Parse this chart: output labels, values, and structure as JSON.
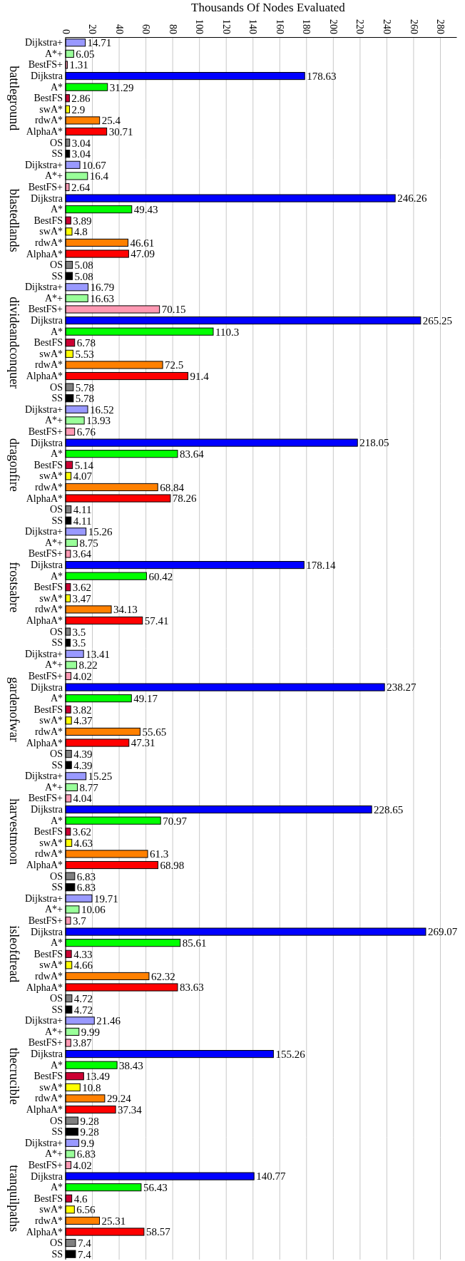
{
  "chart_data": [
    {
      "type": "bar",
      "orientation": "horizontal",
      "title": "battleground",
      "xlabel": "Thousands Of Nodes Evaluated",
      "categories": [
        "Dijkstra+",
        "A*+",
        "BestFS+",
        "Dijkstra",
        "A*",
        "BestFS",
        "swA*",
        "rdwA*",
        "AlphaA*",
        "OS",
        "SS"
      ],
      "values": [
        14.71,
        6.05,
        1.31,
        178.63,
        31.29,
        2.86,
        2.9,
        25.4,
        30.71,
        3.04,
        3.04
      ],
      "colors": [
        "#9999ff",
        "#99ff99",
        "#ff99b3",
        "#0000ff",
        "#00ff00",
        "#cc0033",
        "#ffff00",
        "#ff8000",
        "#ff0000",
        "#808080",
        "#000000"
      ],
      "xlim": [
        0,
        292
      ],
      "xticks": [
        0,
        20,
        40,
        60,
        80,
        100,
        120,
        140,
        160,
        180,
        200,
        220,
        240,
        260,
        280
      ],
      "grid": "x",
      "data_labels": true
    },
    {
      "type": "bar",
      "orientation": "horizontal",
      "title": "blastedlands",
      "categories": [
        "Dijkstra+",
        "A*+",
        "BestFS+",
        "Dijkstra",
        "A*",
        "BestFS",
        "swA*",
        "rdwA*",
        "AlphaA*",
        "OS",
        "SS"
      ],
      "values": [
        10.67,
        16.4,
        2.64,
        246.26,
        49.43,
        3.89,
        4.8,
        46.61,
        47.09,
        5.08,
        5.08
      ],
      "colors": [
        "#9999ff",
        "#99ff99",
        "#ff99b3",
        "#0000ff",
        "#00ff00",
        "#cc0033",
        "#ffff00",
        "#ff8000",
        "#ff0000",
        "#808080",
        "#000000"
      ],
      "grid": "x",
      "data_labels": true,
      "tick_labels": "y"
    },
    {
      "type": "bar",
      "orientation": "horizontal",
      "title": "divideandconquer",
      "categories": [
        "Dijkstra+",
        "A*+",
        "BestFS+",
        "Dijkstra",
        "A*",
        "BestFS",
        "swA*",
        "rdwA*",
        "AlphaA*",
        "OS",
        "SS"
      ],
      "values": [
        16.79,
        16.63,
        70.15,
        265.25,
        110.3,
        6.78,
        5.53,
        72.5,
        91.4,
        5.78,
        5.78
      ],
      "colors": [
        "#9999ff",
        "#99ff99",
        "#ff99b3",
        "#0000ff",
        "#00ff00",
        "#cc0033",
        "#ffff00",
        "#ff8000",
        "#ff0000",
        "#808080",
        "#000000"
      ],
      "grid": "x",
      "data_labels": true,
      "tick_labels": "y"
    },
    {
      "type": "bar",
      "orientation": "horizontal",
      "title": "dragonfire",
      "categories": [
        "Dijkstra+",
        "A*+",
        "BestFS+",
        "Dijkstra",
        "A*",
        "BestFS",
        "swA*",
        "rdwA*",
        "AlphaA*",
        "OS",
        "SS"
      ],
      "values": [
        16.52,
        13.93,
        6.76,
        218.05,
        83.64,
        5.14,
        4.07,
        68.84,
        78.26,
        4.11,
        4.11
      ],
      "colors": [
        "#9999ff",
        "#99ff99",
        "#ff99b3",
        "#0000ff",
        "#00ff00",
        "#cc0033",
        "#ffff00",
        "#ff8000",
        "#ff0000",
        "#808080",
        "#000000"
      ],
      "grid": "x",
      "data_labels": true,
      "tick_labels": "y"
    },
    {
      "type": "bar",
      "orientation": "horizontal",
      "title": "frostsabre",
      "categories": [
        "Dijkstra+",
        "A*+",
        "BestFS+",
        "Dijkstra",
        "A*",
        "BestFS",
        "swA*",
        "rdwA*",
        "AlphaA*",
        "OS",
        "SS"
      ],
      "values": [
        15.26,
        8.75,
        3.64,
        178.14,
        60.42,
        3.62,
        3.47,
        34.13,
        57.41,
        3.5,
        3.5
      ],
      "colors": [
        "#9999ff",
        "#99ff99",
        "#ff99b3",
        "#0000ff",
        "#00ff00",
        "#cc0033",
        "#ffff00",
        "#ff8000",
        "#ff0000",
        "#808080",
        "#000000"
      ],
      "grid": "x",
      "data_labels": true,
      "tick_labels": "y"
    },
    {
      "type": "bar",
      "orientation": "horizontal",
      "title": "gardenofwar",
      "categories": [
        "Dijkstra+",
        "A*+",
        "BestFS+",
        "Dijkstra",
        "A*",
        "BestFS",
        "swA*",
        "rdwA*",
        "AlphaA*",
        "OS",
        "SS"
      ],
      "values": [
        13.41,
        8.22,
        4.02,
        238.27,
        49.17,
        3.82,
        4.37,
        55.65,
        47.31,
        4.39,
        4.39
      ],
      "colors": [
        "#9999ff",
        "#99ff99",
        "#ff99b3",
        "#0000ff",
        "#00ff00",
        "#cc0033",
        "#ffff00",
        "#ff8000",
        "#ff0000",
        "#808080",
        "#000000"
      ],
      "grid": "x",
      "data_labels": true,
      "tick_labels": "y"
    },
    {
      "type": "bar",
      "orientation": "horizontal",
      "title": "harvestmoon",
      "categories": [
        "Dijkstra+",
        "A*+",
        "BestFS+",
        "Dijkstra",
        "A*",
        "BestFS",
        "swA*",
        "rdwA*",
        "AlphaA*",
        "OS",
        "SS"
      ],
      "values": [
        15.25,
        8.77,
        4.04,
        228.65,
        70.97,
        3.62,
        4.63,
        61.3,
        68.98,
        6.83,
        6.83
      ],
      "colors": [
        "#9999ff",
        "#99ff99",
        "#ff99b3",
        "#0000ff",
        "#00ff00",
        "#cc0033",
        "#ffff00",
        "#ff8000",
        "#ff0000",
        "#808080",
        "#000000"
      ],
      "grid": "x",
      "data_labels": true,
      "tick_labels": "y"
    },
    {
      "type": "bar",
      "orientation": "horizontal",
      "title": "isleofdread",
      "categories": [
        "Dijkstra+",
        "A*+",
        "BestFS+",
        "Dijkstra",
        "A*",
        "BestFS",
        "swA*",
        "rdwA*",
        "AlphaA*",
        "OS",
        "SS"
      ],
      "values": [
        19.71,
        10.06,
        3.7,
        269.07,
        85.61,
        4.33,
        4.66,
        62.32,
        83.63,
        4.72,
        4.72
      ],
      "colors": [
        "#9999ff",
        "#99ff99",
        "#ff99b3",
        "#0000ff",
        "#00ff00",
        "#cc0033",
        "#ffff00",
        "#ff8000",
        "#ff0000",
        "#808080",
        "#000000"
      ],
      "grid": "x",
      "data_labels": true,
      "tick_labels": "y"
    },
    {
      "type": "bar",
      "orientation": "horizontal",
      "title": "thecrucible",
      "categories": [
        "Dijkstra+",
        "A*+",
        "BestFS+",
        "Dijkstra",
        "A*",
        "BestFS",
        "swA*",
        "rdwA*",
        "AlphaA*",
        "OS",
        "SS"
      ],
      "values": [
        21.46,
        9.99,
        3.87,
        155.26,
        38.43,
        13.49,
        10.8,
        29.24,
        37.34,
        9.28,
        9.28
      ],
      "colors": [
        "#9999ff",
        "#99ff99",
        "#ff99b3",
        "#0000ff",
        "#00ff00",
        "#cc0033",
        "#ffff00",
        "#ff8000",
        "#ff0000",
        "#808080",
        "#000000"
      ],
      "grid": "x",
      "data_labels": true,
      "tick_labels": "y"
    },
    {
      "type": "bar",
      "orientation": "horizontal",
      "title": "tranquilpaths",
      "categories": [
        "Dijkstra+",
        "A*+",
        "BestFS+",
        "Dijkstra",
        "A*",
        "BestFS",
        "swA*",
        "rdwA*",
        "AlphaA*",
        "OS",
        "SS"
      ],
      "values": [
        9.9,
        6.83,
        4.02,
        140.77,
        56.43,
        4.6,
        6.56,
        25.31,
        58.57,
        7.4,
        7.4
      ],
      "colors": [
        "#9999ff",
        "#99ff99",
        "#ff99b3",
        "#0000ff",
        "#00ff00",
        "#cc0033",
        "#ffff00",
        "#ff8000",
        "#ff0000",
        "#808080",
        "#000000"
      ],
      "grid": "x",
      "data_labels": true,
      "tick_labels": "y"
    }
  ]
}
